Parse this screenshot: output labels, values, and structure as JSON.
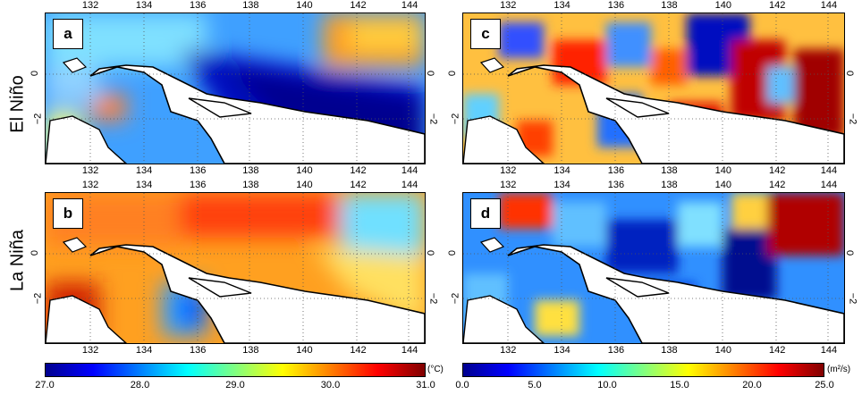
{
  "row_labels": {
    "top": "El Niño",
    "bottom": "La Niña"
  },
  "panels": [
    {
      "id": "a",
      "label": "a",
      "variable": "sst",
      "phase": "El Niño"
    },
    {
      "id": "b",
      "label": "b",
      "variable": "sst",
      "phase": "La Niña"
    },
    {
      "id": "c",
      "label": "c",
      "variable": "diffusivity",
      "phase": "El Niño"
    },
    {
      "id": "d",
      "label": "d",
      "variable": "diffusivity",
      "phase": "La Niña"
    }
  ],
  "lon_ticks": [
    "132",
    "134",
    "136",
    "138",
    "140",
    "142",
    "144"
  ],
  "lat_ticks": [
    "0",
    "−2"
  ],
  "colorbars": {
    "left": {
      "ticks": [
        "27.0",
        "28.0",
        "29.0",
        "30.0",
        "31.0"
      ],
      "unit": "(°C)"
    },
    "right": {
      "ticks": [
        "0.0",
        "5.0",
        "10.0",
        "15.0",
        "20.0",
        "25.0"
      ],
      "unit": "(m²/s)"
    }
  },
  "colors": {
    "jet": [
      "#00008f",
      "#0000ff",
      "#00bfff",
      "#40ffbf",
      "#ffff00",
      "#ff8000",
      "#ff0000",
      "#800000"
    ]
  }
}
